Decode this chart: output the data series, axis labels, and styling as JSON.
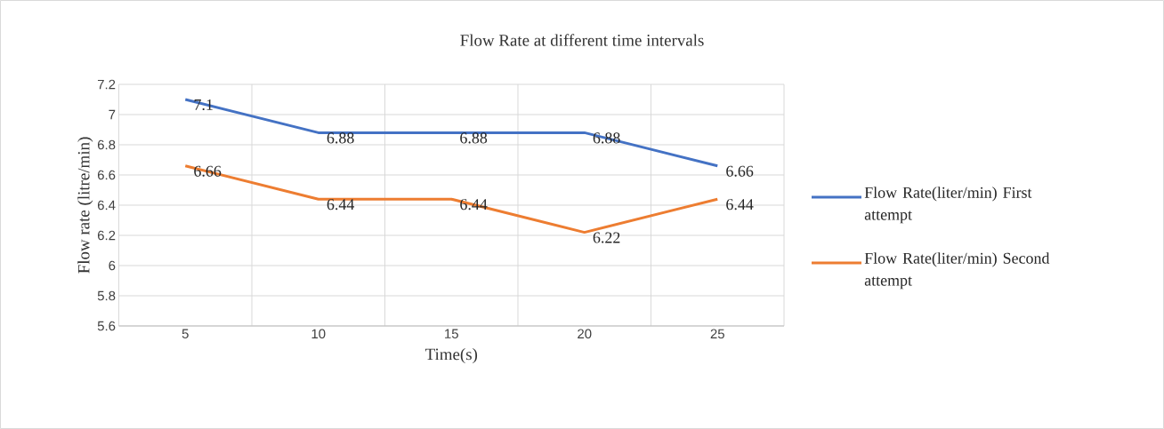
{
  "chart_data": {
    "type": "line",
    "title": "Flow Rate at different time intervals",
    "xlabel": "Time(s)",
    "ylabel": "Flow rate (litre/min)",
    "categories": [
      "5",
      "10",
      "15",
      "20",
      "25"
    ],
    "series": [
      {
        "name": "Flow Rate(liter/min) First attempt",
        "color": "#4472c4",
        "values": [
          7.1,
          6.88,
          6.88,
          6.88,
          6.66
        ]
      },
      {
        "name": "Flow Rate(liter/min) Second attempt",
        "color": "#ed7d31",
        "values": [
          6.66,
          6.44,
          6.44,
          6.22,
          6.44
        ]
      }
    ],
    "ylim": [
      5.6,
      7.2
    ],
    "yticks": [
      5.6,
      5.8,
      6,
      6.2,
      6.4,
      6.6,
      6.8,
      7,
      7.2
    ],
    "grid": true,
    "legend": "right",
    "data_labels": true,
    "marker": "none",
    "line_style": "solid"
  }
}
